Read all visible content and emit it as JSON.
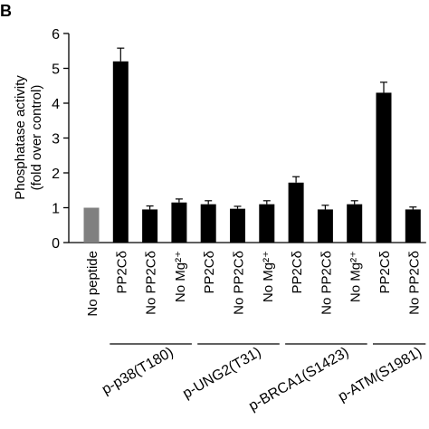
{
  "panel_label": "B",
  "chart_data": {
    "type": "bar",
    "ylabel_lines": [
      "Phosphatase activity",
      "(fold over control)"
    ],
    "ylim": [
      0,
      6
    ],
    "yticks": [
      0,
      1,
      2,
      3,
      4,
      5,
      6
    ],
    "grid": false,
    "legend": "none",
    "categories": [
      "No peptide",
      "PP2Cδ",
      "No PP2Cδ",
      "No Mg²⁺",
      "PP2Cδ",
      "No PP2Cδ",
      "No Mg²⁺",
      "PP2Cδ",
      "No PP2Cδ",
      "No Mg²⁺",
      "PP2Cδ",
      "No PP2Cδ"
    ],
    "values": [
      1.0,
      5.2,
      0.95,
      1.15,
      1.1,
      0.97,
      1.1,
      1.72,
      0.95,
      1.1,
      4.3,
      0.95
    ],
    "errors": [
      0.0,
      0.38,
      0.1,
      0.1,
      0.1,
      0.07,
      0.1,
      0.17,
      0.12,
      0.1,
      0.3,
      0.07
    ],
    "colors": [
      "#808080",
      "#000000",
      "#000000",
      "#000000",
      "#000000",
      "#000000",
      "#000000",
      "#000000",
      "#000000",
      "#000000",
      "#000000",
      "#000000"
    ],
    "groups": [
      {
        "label": "p-p38(T180)",
        "start": 1,
        "end": 3
      },
      {
        "label": "p-UNG2(T31)",
        "start": 4,
        "end": 6
      },
      {
        "label": "p-BRCA1(S1423)",
        "start": 7,
        "end": 9
      },
      {
        "label": "p-ATM(S1981)",
        "start": 10,
        "end": 11
      }
    ]
  }
}
